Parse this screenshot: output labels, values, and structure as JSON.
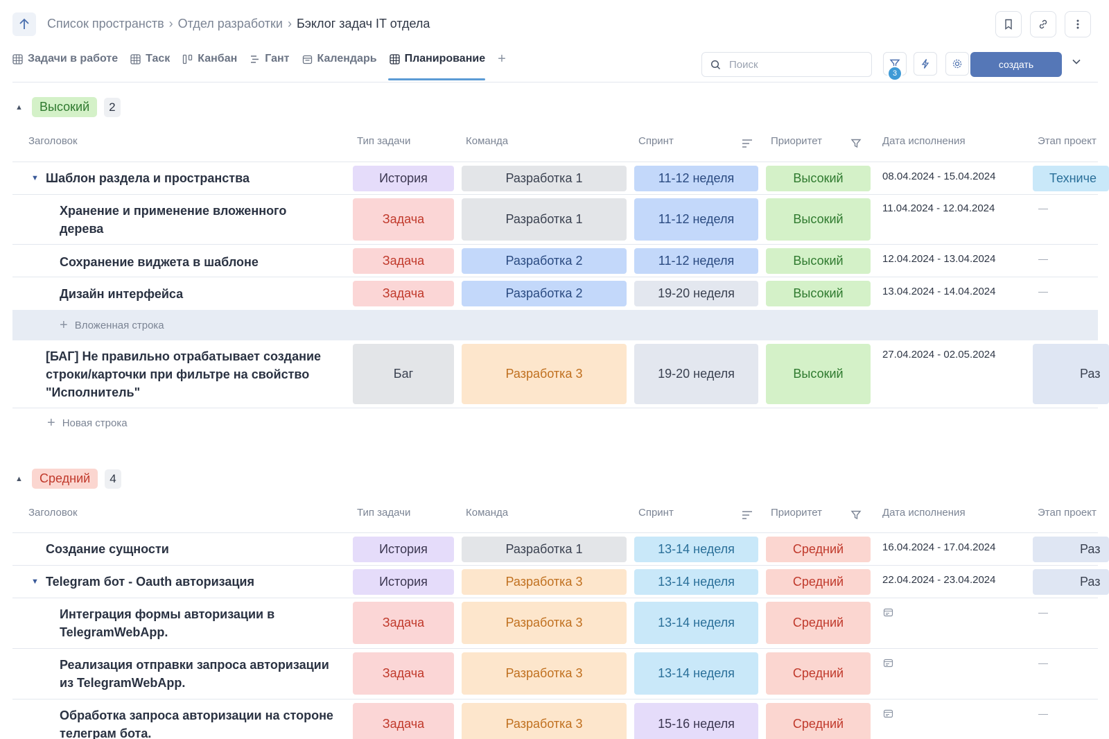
{
  "header": {
    "breadcrumb": [
      "Список пространств",
      "Отдел разработки",
      "Бэклог задач IT отдела"
    ]
  },
  "tabs": [
    "Задачи в работе",
    "Таск",
    "Канбан",
    "Гант",
    "Календарь",
    "Планирование"
  ],
  "toolbar": {
    "search_placeholder": "Поиск",
    "filter_badge": "3",
    "create_label": "создать"
  },
  "columns": [
    "Заголовок",
    "Тип задачи",
    "Команда",
    "Спринт",
    "Приоритет",
    "Дата исполнения",
    "Этап проект"
  ],
  "colors": {
    "История": "#e5dcfa",
    "Задача": "#fbd6d6",
    "Баг": "#e3e5e8",
    "Разработка 1": "#e3e5e8",
    "Разработка 2": "#c3d8fa",
    "Разработка 3": "#fde6cc",
    "11-12 неделя": "#c3d8fa",
    "19-20 неделя": "#e3e7ef",
    "13-14 неделя": "#c9e8f9",
    "15-16 неделя": "#e5dcfa",
    "Высокий": "#d4f1c8",
    "Средний": "#fbd6d0"
  },
  "groups": [
    {
      "name": "Высокий",
      "count": "2",
      "tag_bg": "#d4f1c8",
      "tag_color": "#2f7a2f",
      "rows": [
        {
          "title": "Шаблон раздела и пространства",
          "caret": true,
          "indent": false,
          "type": "История",
          "team": "Разработка 1",
          "sprint": "11-12 неделя",
          "priority": "Высокий",
          "date": "08.04.2024 - 15.04.2024",
          "stage": "Техниче",
          "stage_color": "#c9e8f9"
        },
        {
          "title": "Хранение и применение вложенного дерева",
          "caret": false,
          "indent": true,
          "type": "Задача",
          "team": "Разработка 1",
          "sprint": "11-12 неделя",
          "priority": "Высокий",
          "date": "11.04.2024 - 12.04.2024",
          "stage": "—"
        },
        {
          "title": "Сохранение виджета в шаблоне",
          "caret": false,
          "indent": true,
          "type": "Задача",
          "team": "Разработка 2",
          "sprint": "11-12 неделя",
          "priority": "Высокий",
          "date": "12.04.2024 - 13.04.2024",
          "stage": "—"
        },
        {
          "title": "Дизайн интерфейса",
          "caret": false,
          "indent": true,
          "type": "Задача",
          "team": "Разработка 2",
          "sprint": "19-20 неделя",
          "priority": "Высокий",
          "date": "13.04.2024 - 14.04.2024",
          "stage": "—"
        },
        {
          "title": "[БАГ] Не правильно отрабатывает создание строки/карточки при фильтре на свойство \"Исполнитель\"",
          "caret": false,
          "indent": false,
          "type": "Баг",
          "team": "Разработка 3",
          "sprint": "19-20 неделя",
          "priority": "Высокий",
          "date": "27.04.2024 - 02.05.2024",
          "stage": "Раз",
          "stage_color": "#dfe6f3"
        }
      ],
      "nested_row_label": "Вложенная строка",
      "new_row_label": "Новая строка"
    },
    {
      "name": "Средний",
      "count": "4",
      "tag_bg": "#fbd6d0",
      "tag_color": "#c0392b",
      "rows": [
        {
          "title": "Создание сущности",
          "caret": false,
          "indent": false,
          "type": "История",
          "team": "Разработка 1",
          "sprint": "13-14 неделя",
          "priority": "Средний",
          "date": "16.04.2024 - 17.04.2024",
          "stage": "Раз",
          "stage_color": "#dfe6f3"
        },
        {
          "title": "Telegram бот - Oauth авторизация",
          "caret": true,
          "indent": false,
          "type": "История",
          "team": "Разработка 3",
          "sprint": "13-14 неделя",
          "priority": "Средний",
          "date": "22.04.2024 - 23.04.2024",
          "stage": "Раз",
          "stage_color": "#dfe6f3"
        },
        {
          "title": "Интеграция формы авторизации в TelegramWebApp.",
          "caret": false,
          "indent": true,
          "type": "Задача",
          "team": "Разработка 3",
          "sprint": "13-14 неделя",
          "priority": "Средний",
          "date": "",
          "date_icon": "calendar-icon",
          "stage": "—"
        },
        {
          "title": "Реализация отправки запроса авторизации из TelegramWebApp.",
          "caret": false,
          "indent": true,
          "type": "Задача",
          "team": "Разработка 3",
          "sprint": "13-14 неделя",
          "priority": "Средний",
          "date": "",
          "date_icon": "calendar-icon",
          "stage": "—"
        },
        {
          "title": "Обработка запроса авторизации на стороне телеграм бота.",
          "caret": false,
          "indent": true,
          "type": "Задача",
          "team": "Разработка 3",
          "sprint": "15-16 неделя",
          "priority": "Средний",
          "date": "",
          "date_icon": "calendar-icon",
          "stage": "—"
        }
      ]
    }
  ]
}
